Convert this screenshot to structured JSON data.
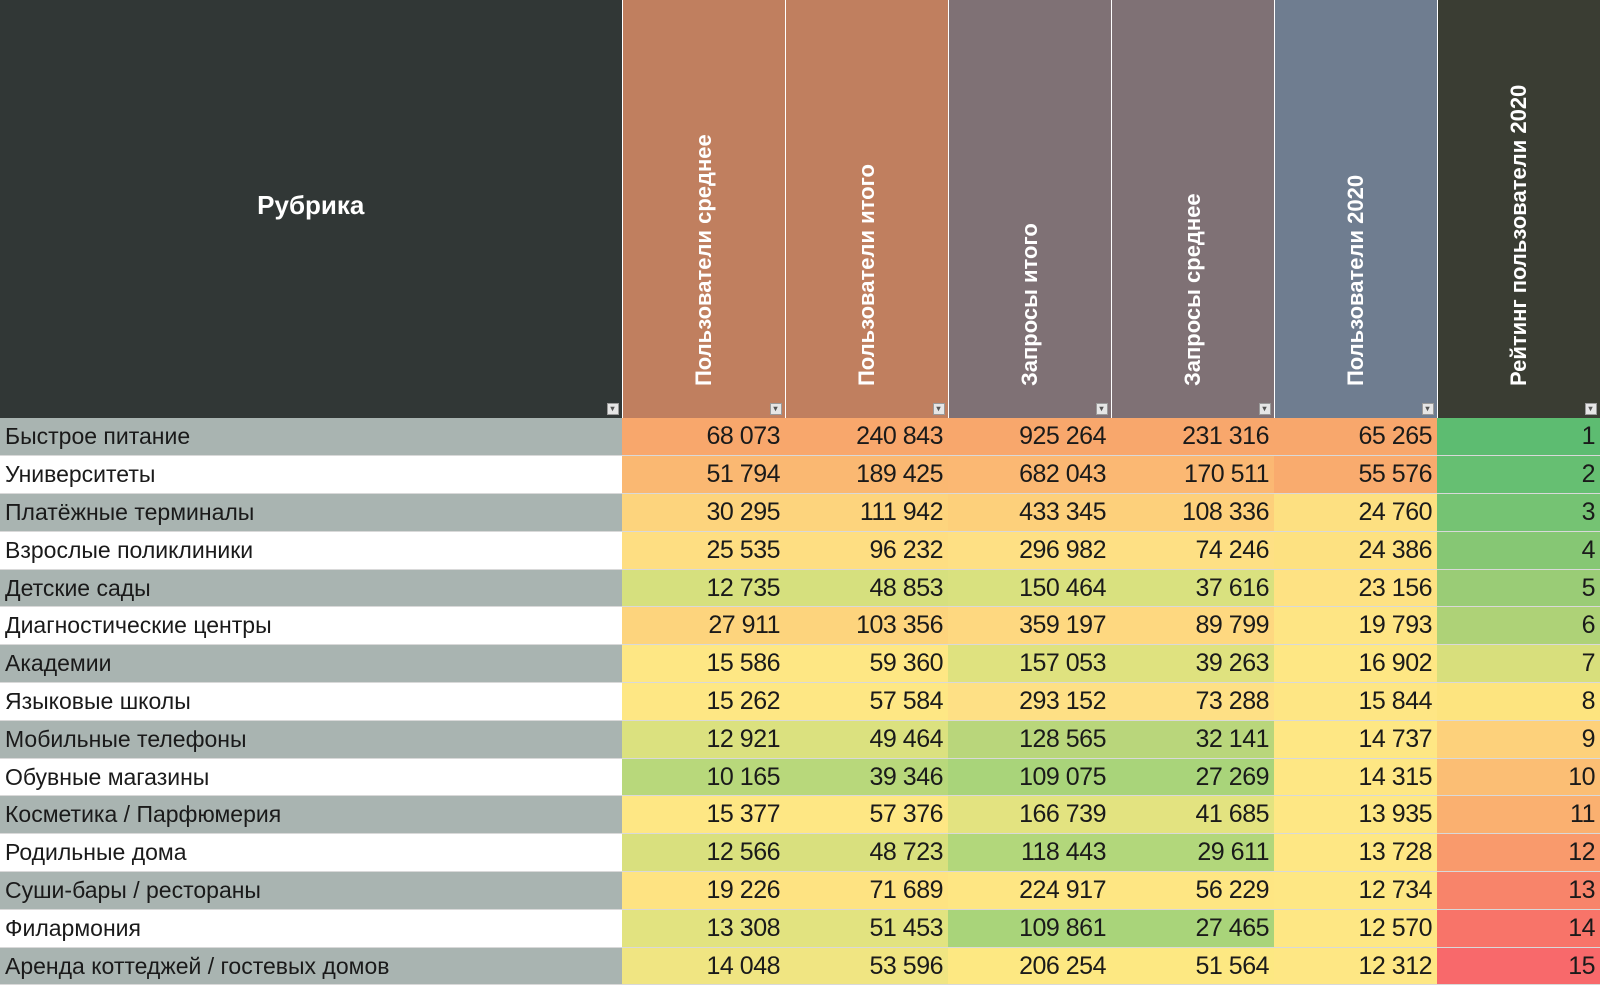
{
  "header": {
    "rubric": "Рубрика",
    "columns": [
      {
        "label": "Пользователи среднее",
        "bg": "#c07f5f"
      },
      {
        "label": "Пользователи итого",
        "bg": "#c07f5f"
      },
      {
        "label": "Запросы итого",
        "bg": "#7f7175"
      },
      {
        "label": "Запросы среднее",
        "bg": "#7f7175"
      },
      {
        "label": "Пользователи 2020",
        "bg": "#6f7d90"
      },
      {
        "label": "Рейтинг пользователи 2020",
        "bg": "#3a3d33"
      }
    ],
    "rubric_bg": "#313736"
  },
  "rows": [
    {
      "name": "Быстрое питание",
      "v": [
        "68 073",
        "240 843",
        "925 264",
        "231 316",
        "65 265",
        "1"
      ],
      "c": [
        "#f8a76c",
        "#f8a76c",
        "#f8a76c",
        "#f8a76c",
        "#f8a76c",
        "#5dbc71"
      ]
    },
    {
      "name": "Университеты",
      "v": [
        "51 794",
        "189 425",
        "682 043",
        "170 511",
        "55 576",
        "2"
      ],
      "c": [
        "#fab872",
        "#fab872",
        "#fbb873",
        "#fbb873",
        "#f9ab6e",
        "#66bf72"
      ]
    },
    {
      "name": "Платёжные терминалы",
      "v": [
        "30 295",
        "111 942",
        "433 345",
        "108 336",
        "24 760",
        "3"
      ],
      "c": [
        "#fdd47d",
        "#fdd47d",
        "#fdd07b",
        "#fdd07b",
        "#fde081",
        "#75c373"
      ]
    },
    {
      "name": "Взрослые поликлиники",
      "v": [
        "25 535",
        "96 232",
        "296 982",
        "74 246",
        "24 386",
        "4"
      ],
      "c": [
        "#fede82",
        "#fede82",
        "#fee084",
        "#fee084",
        "#fde181",
        "#86c774"
      ]
    },
    {
      "name": "Детские сады",
      "v": [
        "12 735",
        "48 853",
        "150 464",
        "37 616",
        "23 156",
        "5"
      ],
      "c": [
        "#d6e07e",
        "#d6e07e",
        "#d9e17f",
        "#d9e17f",
        "#fee283",
        "#9acc76"
      ]
    },
    {
      "name": "Диагностические центры",
      "v": [
        "27 911",
        "103 356",
        "359 197",
        "89 799",
        "19 793",
        "6"
      ],
      "c": [
        "#fdd47d",
        "#fdd47d",
        "#fed880",
        "#fed880",
        "#fee584",
        "#aed277"
      ]
    },
    {
      "name": "Академии",
      "v": [
        "15 586",
        "59 360",
        "157 053",
        "39 263",
        "16 902",
        "7"
      ],
      "c": [
        "#fee784",
        "#fee784",
        "#dfe27f",
        "#dfe27f",
        "#fee784",
        "#d8df7c"
      ]
    },
    {
      "name": "Языковые школы",
      "v": [
        "15 262",
        "57 584",
        "293 152",
        "73 288",
        "15 844",
        "8"
      ],
      "c": [
        "#fee784",
        "#fee784",
        "#fee085",
        "#fee085",
        "#fee684",
        "#fde47f"
      ]
    },
    {
      "name": "Мобильные телефоны",
      "v": [
        "12 921",
        "49 464",
        "128 565",
        "32 141",
        "14 737",
        "9"
      ],
      "c": [
        "#dbe17f",
        "#dbe17f",
        "#b9d67b",
        "#b9d67b",
        "#fee784",
        "#fdd17b"
      ]
    },
    {
      "name": "Обувные магазины",
      "v": [
        "10 165",
        "39 346",
        "109 075",
        "27 269",
        "14 315",
        "10"
      ],
      "c": [
        "#b8d87b",
        "#b8d87b",
        "#a9d47a",
        "#a9d47a",
        "#fee784",
        "#fbbe74"
      ]
    },
    {
      "name": "Косметика / Парфюмерия",
      "v": [
        "15 377",
        "57 376",
        "166 739",
        "41 685",
        "13 935",
        "11"
      ],
      "c": [
        "#fee784",
        "#fee784",
        "#e3e380",
        "#e3e380",
        "#fee784",
        "#fab070"
      ]
    },
    {
      "name": "Родильные дома",
      "v": [
        "12 566",
        "48 723",
        "118 443",
        "29 611",
        "13 728",
        "12"
      ],
      "c": [
        "#d9e07e",
        "#d9e07e",
        "#b2d77b",
        "#b2d77b",
        "#fee784",
        "#f99a6c"
      ]
    },
    {
      "name": "Суши-бары / рестораны",
      "v": [
        "19 226",
        "71 689",
        "224 917",
        "56 229",
        "12 734",
        "13"
      ],
      "c": [
        "#fee382",
        "#fee382",
        "#fee683",
        "#fee683",
        "#fee784",
        "#f8846a"
      ]
    },
    {
      "name": "Филармония",
      "v": [
        "13 308",
        "51 453",
        "109 861",
        "27 465",
        "12 570",
        "14"
      ],
      "c": [
        "#e2e380",
        "#e2e380",
        "#a9d47a",
        "#a9d47a",
        "#fee784",
        "#f87469"
      ]
    },
    {
      "name": "Аренда коттеджей / гостевых домов",
      "v": [
        "14 048",
        "53 596",
        "206 254",
        "51 564",
        "12 312",
        "15"
      ],
      "c": [
        "#f0e582",
        "#f0e582",
        "#fde882",
        "#fde882",
        "#fee784",
        "#f8696b"
      ]
    }
  ]
}
